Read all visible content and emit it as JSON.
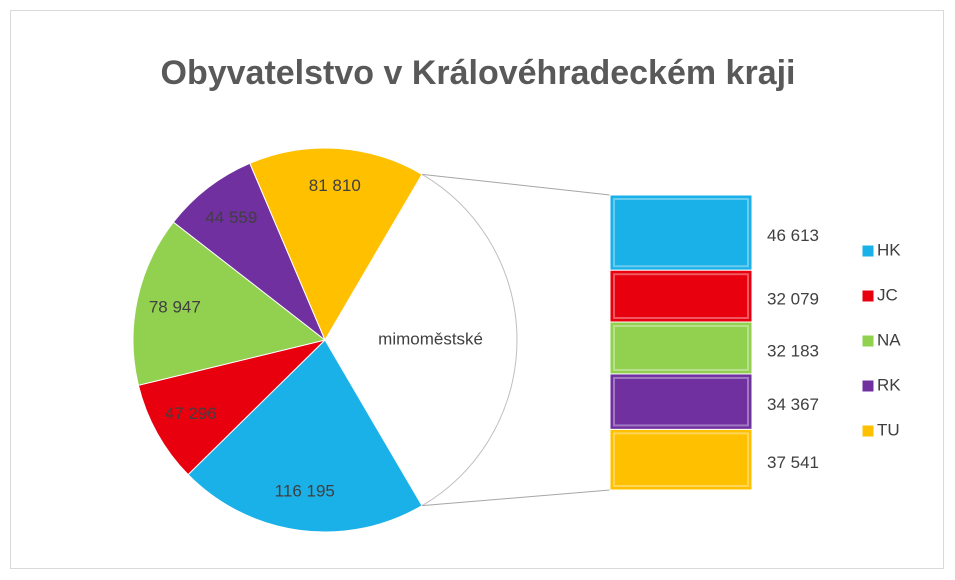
{
  "chart_data": {
    "type": "pie-of-bar",
    "title": "Obyvatelstvo v Královéhradeckém kraji",
    "categories": [
      "HK",
      "JC",
      "NA",
      "RK",
      "TU"
    ],
    "colors": [
      "#1ab0e8",
      "#e8000e",
      "#92d050",
      "#7030a0",
      "#ffc000"
    ],
    "values": [
      116195,
      47296,
      78947,
      44559,
      81810
    ],
    "value_labels": [
      "116 195",
      "47 296",
      "78 947",
      "44 559",
      "81 810"
    ],
    "other_label": "mimoměstské",
    "bar_values": [
      46613,
      32079,
      32183,
      34367,
      37541
    ],
    "bar_value_labels": [
      "46 613",
      "32 079",
      "32 183",
      "34 367",
      "37 541"
    ]
  }
}
